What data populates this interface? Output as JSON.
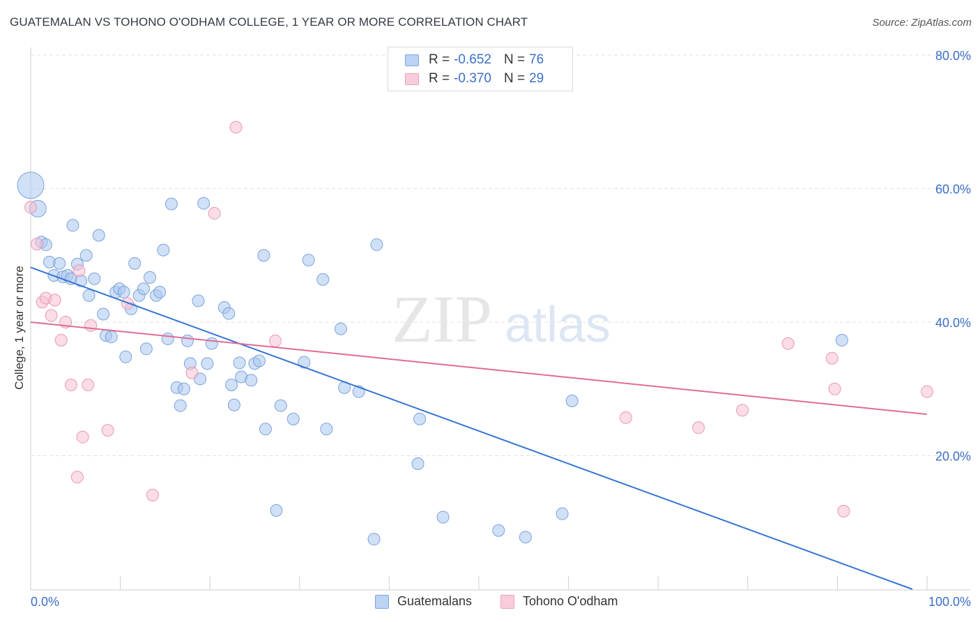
{
  "header": {
    "title": "GUATEMALAN VS TOHONO O'ODHAM COLLEGE, 1 YEAR OR MORE CORRELATION CHART",
    "source": "Source: ZipAtlas.com"
  },
  "watermark": {
    "zip": "ZIP",
    "atlas": "atlas"
  },
  "legend": {
    "rows": [
      {
        "r_label": "R =",
        "r_value": "-0.652",
        "n_label": "N =",
        "n_value": "76"
      },
      {
        "r_label": "R =",
        "r_value": "-0.370",
        "n_label": "N =",
        "n_value": "29"
      }
    ]
  },
  "chart_data": {
    "type": "scatter",
    "title": "GUATEMALAN VS TOHONO O'ODHAM COLLEGE, 1 YEAR OR MORE CORRELATION CHART",
    "ylabel": "College, 1 year or more",
    "xlabel": "",
    "xlim": [
      0,
      100
    ],
    "ylim": [
      0,
      80
    ],
    "x_tick_labels": [
      "0.0%",
      "100.0%"
    ],
    "y_ticks": [
      20,
      40,
      60,
      80
    ],
    "y_tick_labels": [
      "20.0%",
      "40.0%",
      "60.0%",
      "80.0%"
    ],
    "grid": true,
    "legend_position": "top-center",
    "colors": {
      "guatemalans_fill": "#a9c6ef",
      "guatemalans_stroke": "#6f9ad8",
      "guatemalans_line": "#3575d3",
      "tohono_fill": "#f6c1d1",
      "tohono_stroke": "#e88fab",
      "tohono_line": "#e06c93",
      "tick_label": "#3a6fc9"
    },
    "series": [
      {
        "name": "Guatemalans",
        "trend": [
          [
            0,
            48.2
          ],
          [
            100,
            -0.8
          ]
        ],
        "points": [
          [
            0,
            60.5,
            3
          ],
          [
            0.8,
            57,
            2
          ],
          [
            1.2,
            52,
            1
          ],
          [
            1.7,
            51.6,
            1
          ],
          [
            2.1,
            49,
            1
          ],
          [
            2.6,
            47,
            1
          ],
          [
            3.2,
            48.8,
            1
          ],
          [
            3.6,
            46.8,
            1
          ],
          [
            4.1,
            47,
            1
          ],
          [
            4.5,
            46.5,
            1
          ],
          [
            4.7,
            54.5,
            1
          ],
          [
            5.2,
            48.7,
            1
          ],
          [
            5.6,
            46.2,
            1
          ],
          [
            6.2,
            50,
            1
          ],
          [
            6.5,
            44,
            1
          ],
          [
            7.1,
            46.5,
            1
          ],
          [
            7.6,
            53,
            1
          ],
          [
            8.1,
            41.2,
            1
          ],
          [
            8.4,
            38,
            1
          ],
          [
            9,
            37.8,
            1
          ],
          [
            9.5,
            44.5,
            1
          ],
          [
            9.9,
            45,
            1
          ],
          [
            10.4,
            44.5,
            1
          ],
          [
            10.6,
            34.8,
            1
          ],
          [
            11.2,
            42,
            1
          ],
          [
            11.6,
            48.8,
            1
          ],
          [
            12.1,
            44,
            1
          ],
          [
            12.6,
            45,
            1
          ],
          [
            12.9,
            36,
            1
          ],
          [
            13.3,
            46.7,
            1
          ],
          [
            14,
            44,
            1
          ],
          [
            14.4,
            44.5,
            1
          ],
          [
            14.8,
            50.8,
            1
          ],
          [
            15.3,
            37.5,
            1
          ],
          [
            15.7,
            57.7,
            1
          ],
          [
            16.3,
            30.2,
            1
          ],
          [
            16.7,
            27.5,
            1
          ],
          [
            17.1,
            30,
            1
          ],
          [
            17.5,
            37.2,
            1
          ],
          [
            17.8,
            33.8,
            1
          ],
          [
            18.7,
            43.2,
            1
          ],
          [
            18.9,
            31.5,
            1
          ],
          [
            19.3,
            57.8,
            1
          ],
          [
            19.7,
            33.8,
            1
          ],
          [
            20.2,
            36.8,
            1
          ],
          [
            21.6,
            42.2,
            1
          ],
          [
            22.1,
            41.3,
            1
          ],
          [
            22.4,
            30.6,
            1
          ],
          [
            22.7,
            27.6,
            1
          ],
          [
            23.3,
            33.9,
            1
          ],
          [
            23.5,
            31.8,
            1
          ],
          [
            24.6,
            31.3,
            1
          ],
          [
            25,
            33.8,
            1
          ],
          [
            25.5,
            34.2,
            1
          ],
          [
            26,
            50,
            1
          ],
          [
            26.2,
            24,
            1
          ],
          [
            27.4,
            11.8,
            1
          ],
          [
            27.9,
            27.5,
            1
          ],
          [
            29.3,
            25.5,
            1
          ],
          [
            30.5,
            34,
            1
          ],
          [
            31,
            49.3,
            1
          ],
          [
            32.6,
            46.4,
            1
          ],
          [
            33,
            24,
            1
          ],
          [
            34.6,
            39,
            1
          ],
          [
            35,
            30.2,
            1
          ],
          [
            36.6,
            29.6,
            1
          ],
          [
            38.3,
            7.5,
            1
          ],
          [
            38.6,
            51.6,
            1
          ],
          [
            43.2,
            18.8,
            1
          ],
          [
            43.4,
            25.5,
            1
          ],
          [
            46,
            10.8,
            1
          ],
          [
            52.2,
            8.8,
            1
          ],
          [
            55.2,
            7.8,
            1
          ],
          [
            59.3,
            11.3,
            1
          ],
          [
            60.4,
            28.2,
            1
          ],
          [
            90.5,
            37.3,
            1
          ]
        ]
      },
      {
        "name": "Tohono O'odham",
        "trend": [
          [
            0,
            40
          ],
          [
            100,
            26.2
          ]
        ],
        "points": [
          [
            0,
            57.2,
            1
          ],
          [
            0.7,
            51.7,
            1
          ],
          [
            1.3,
            43,
            1
          ],
          [
            1.7,
            43.6,
            1
          ],
          [
            2.3,
            41,
            1
          ],
          [
            2.7,
            43.3,
            1
          ],
          [
            3.4,
            37.3,
            1
          ],
          [
            3.9,
            40,
            1
          ],
          [
            4.5,
            30.6,
            1
          ],
          [
            5.2,
            16.8,
            1
          ],
          [
            5.4,
            47.7,
            1
          ],
          [
            5.8,
            22.8,
            1
          ],
          [
            6.4,
            30.6,
            1
          ],
          [
            6.7,
            39.5,
            1
          ],
          [
            8.6,
            23.8,
            1
          ],
          [
            10.8,
            42.8,
            1
          ],
          [
            13.6,
            14.1,
            1
          ],
          [
            18,
            32.4,
            1
          ],
          [
            20.5,
            56.3,
            1
          ],
          [
            22.9,
            69.2,
            1
          ],
          [
            27.3,
            37.2,
            1
          ],
          [
            66.4,
            25.7,
            1
          ],
          [
            74.5,
            24.2,
            1
          ],
          [
            79.4,
            26.8,
            1
          ],
          [
            84.5,
            36.8,
            1
          ],
          [
            89.4,
            34.6,
            1
          ],
          [
            89.7,
            30,
            1
          ],
          [
            90.7,
            11.7,
            1
          ],
          [
            100,
            29.6,
            1
          ]
        ]
      }
    ]
  }
}
